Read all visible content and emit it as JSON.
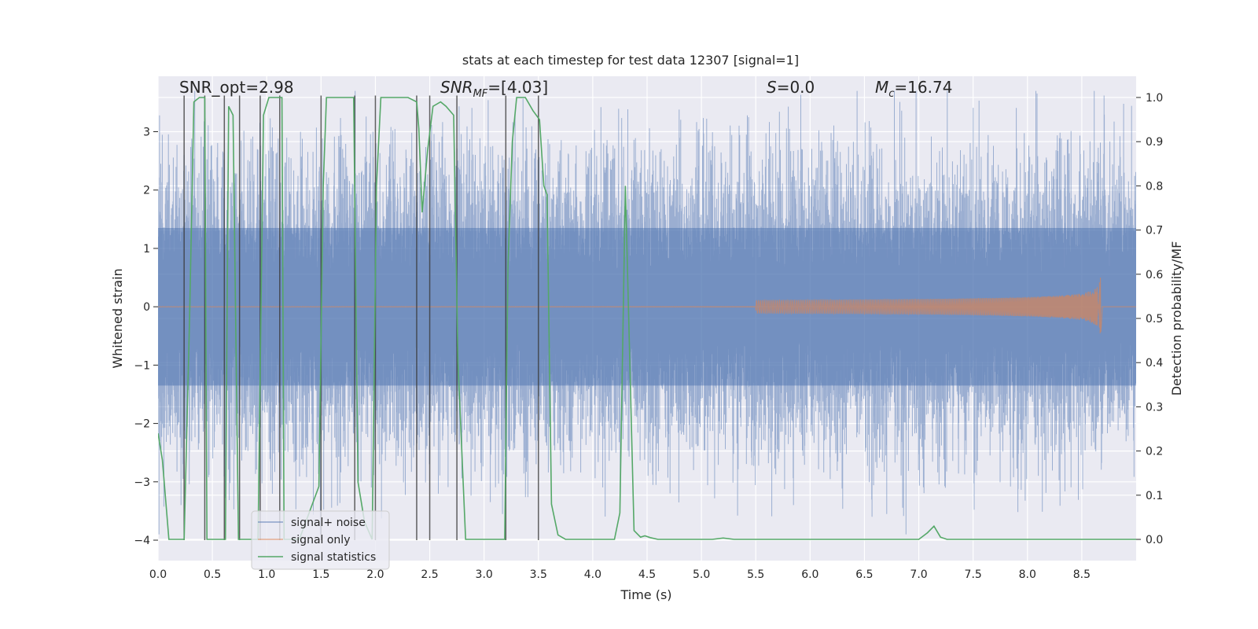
{
  "chart_data": {
    "type": "line",
    "title": "stats at each timestep for test data 12307 [signal=1]",
    "xlabel": "Time (s)",
    "ylabel": "Whitened strain",
    "y2label": "Detection probability/MF",
    "xlim": [
      0.0,
      9.0
    ],
    "ylim": [
      -4.35,
      3.95
    ],
    "y2lim": [
      -0.048,
      1.048
    ],
    "xticks": [
      0.0,
      0.5,
      1.0,
      1.5,
      2.0,
      2.5,
      3.0,
      3.5,
      4.0,
      4.5,
      5.0,
      5.5,
      6.0,
      6.5,
      7.0,
      7.5,
      8.0,
      8.5
    ],
    "xtick_labels": [
      "0.0",
      "0.5",
      "1.0",
      "1.5",
      "2.0",
      "2.5",
      "3.0",
      "3.5",
      "4.0",
      "4.5",
      "5.0",
      "5.5",
      "6.0",
      "6.5",
      "7.0",
      "7.5",
      "8.0",
      "8.5"
    ],
    "yticks": [
      -4,
      -3,
      -2,
      -1,
      0,
      1,
      2,
      3
    ],
    "ytick_labels": [
      "−4",
      "−3",
      "−2",
      "−1",
      "0",
      "1",
      "2",
      "3"
    ],
    "y2ticks": [
      0.0,
      0.1,
      0.2,
      0.3,
      0.4,
      0.5,
      0.6,
      0.7,
      0.8,
      0.9,
      1.0
    ],
    "y2tick_labels": [
      "0.0",
      "0.1",
      "0.2",
      "0.3",
      "0.4",
      "0.5",
      "0.6",
      "0.7",
      "0.8",
      "0.9",
      "1.0"
    ],
    "annotations": {
      "snr_opt": "SNR_opt=2.98",
      "snr_mf_label": "SNR",
      "snr_mf_sub": "MF",
      "snr_mf_value": "=[4.03]",
      "s_label": "S",
      "s_value": "=0.0",
      "mc_label": "M",
      "mc_sub": "c",
      "mc_value": "=16.74"
    },
    "legend": {
      "position": "lower-left",
      "entries": [
        "signal+ noise",
        "signal only",
        "signal statistics"
      ]
    },
    "colors": {
      "noise": "#4c72b0",
      "signal": "#dd8452",
      "stats": "#55a868",
      "vlines": "#3a3a3a",
      "background": "#eaeaf2",
      "grid": "#ffffff"
    },
    "series": [
      {
        "name": "signal+ noise",
        "axis": "left",
        "description": "whitened strain, dense noise approx. N(0,1) over 0-9 s",
        "sigma": 1.0
      },
      {
        "name": "signal only",
        "axis": "left",
        "description": "chirp, flat near 0 until ~6 s, growing to peak amplitude ~0.65 at t~8.68 s then ends",
        "merger_time": 8.68,
        "peak_amplitude": 0.65
      },
      {
        "name": "signal statistics",
        "axis": "right",
        "t": [
          0.0,
          0.04,
          0.06,
          0.1,
          0.2,
          0.24,
          0.29,
          0.33,
          0.38,
          0.41,
          0.43,
          0.45,
          0.5,
          0.54,
          0.6,
          0.62,
          0.65,
          0.69,
          0.74,
          0.76,
          0.8,
          0.85,
          0.92,
          0.97,
          1.02,
          1.07,
          1.14,
          1.16,
          1.2,
          1.3,
          1.48,
          1.52,
          1.55,
          1.6,
          1.65,
          1.8,
          1.84,
          1.9,
          1.97,
          2.01,
          2.05,
          2.07,
          2.3,
          2.38,
          2.4,
          2.43,
          2.48,
          2.53,
          2.6,
          2.65,
          2.72,
          2.76,
          2.83,
          2.88,
          2.93,
          3.0,
          3.19,
          3.22,
          3.26,
          3.3,
          3.38,
          3.45,
          3.51,
          3.55,
          3.58,
          3.62,
          3.68,
          3.75,
          3.85,
          4.0,
          4.2,
          4.25,
          4.3,
          4.38,
          4.44,
          4.48,
          4.53,
          4.6,
          5.0,
          5.1,
          5.2,
          5.3,
          5.4,
          6.0,
          7.0,
          7.08,
          7.14,
          7.2,
          7.26,
          8.0,
          9.0
        ],
        "p": [
          0.24,
          0.18,
          0.12,
          0.0,
          0.0,
          0.0,
          0.5,
          0.99,
          1.0,
          1.0,
          1.0,
          0.0,
          0.0,
          0.0,
          0.0,
          0.0,
          0.98,
          0.96,
          0.0,
          0.0,
          0.0,
          0.0,
          0.0,
          0.96,
          1.0,
          1.0,
          1.0,
          0.0,
          0.0,
          0.0,
          0.12,
          0.8,
          1.0,
          1.0,
          1.0,
          1.0,
          0.13,
          0.04,
          0.0,
          0.8,
          1.0,
          1.0,
          1.0,
          0.99,
          0.93,
          0.74,
          0.88,
          0.98,
          0.99,
          0.98,
          0.96,
          0.4,
          0.0,
          0.0,
          0.0,
          0.0,
          0.0,
          0.62,
          0.9,
          1.0,
          1.0,
          0.97,
          0.95,
          0.8,
          0.78,
          0.08,
          0.01,
          0.0,
          0.0,
          0.0,
          0.0,
          0.06,
          0.8,
          0.02,
          0.005,
          0.008,
          0.004,
          0.0,
          0.0,
          0.0,
          0.003,
          0.0,
          0.0,
          0.0,
          0.0,
          0.015,
          0.03,
          0.005,
          0.0,
          0.0,
          0.0
        ]
      }
    ],
    "vertical_lines": [
      0.24,
      0.43,
      0.61,
      0.75,
      0.94,
      1.12,
      1.5,
      1.81,
      2.0,
      2.38,
      2.5,
      2.75,
      3.2,
      3.5
    ],
    "vertical_lines_range": [
      -4.0,
      3.62
    ]
  }
}
